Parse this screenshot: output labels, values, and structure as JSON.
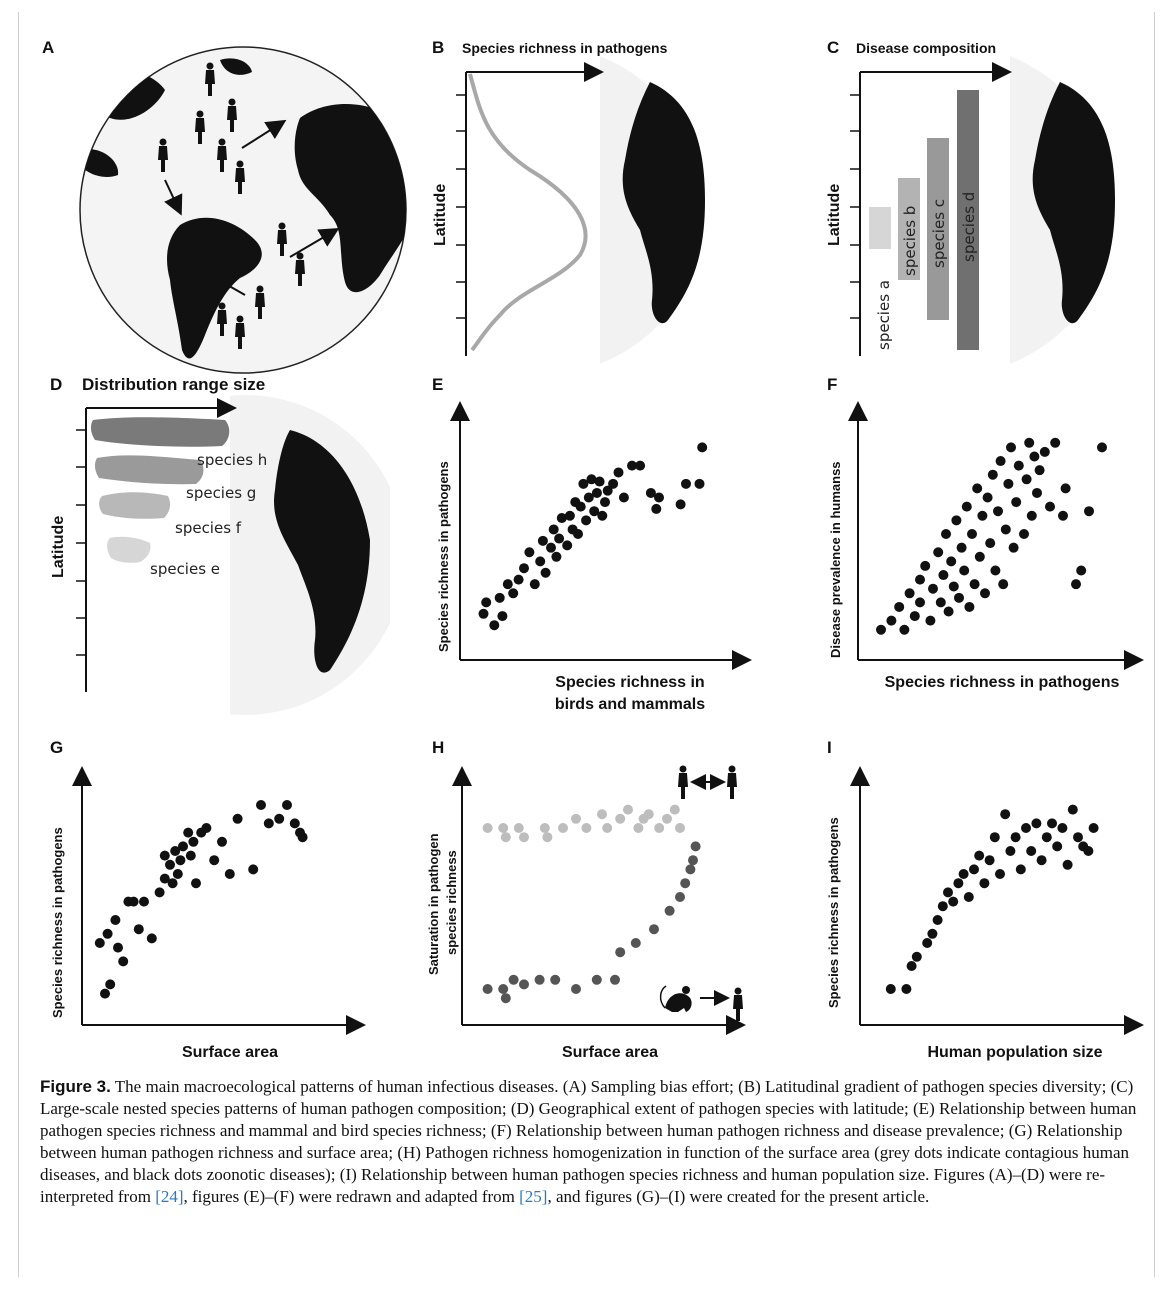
{
  "figure": {
    "panels": {
      "A": {
        "label": "A"
      },
      "B": {
        "label": "B",
        "title": "Species richness in pathogens",
        "ylabel": "Latitude"
      },
      "C": {
        "label": "C",
        "title": "Disease composition",
        "ylabel": "Latitude",
        "species": [
          "species a",
          "species b",
          "species c",
          "species d"
        ]
      },
      "D": {
        "label": "D",
        "title": "Distribution range size",
        "ylabel": "Latitude",
        "species": [
          "species h",
          "species g",
          "species f",
          "species e"
        ]
      },
      "E": {
        "label": "E",
        "ylabel": "Species richness in pathogens",
        "xlabel_line1": "Species richness in",
        "xlabel_line2": "birds and mammals"
      },
      "F": {
        "label": "F",
        "ylabel": "Disease prevalence in humanss",
        "xlabel": "Species richness in pathogens"
      },
      "G": {
        "label": "G",
        "ylabel": "Species richness in pathogens",
        "xlabel": "Surface area"
      },
      "H": {
        "label": "H",
        "ylabel_line1": "Saturation in pathogen",
        "ylabel_line2": "species richness",
        "xlabel": "Surface area"
      },
      "I": {
        "label": "I",
        "ylabel": "Species richness in pathogens",
        "xlabel": "Human population size"
      }
    },
    "colors": {
      "dots": "#111111",
      "grey_dots": "#bdbdbd",
      "dark_grey_dots": "#555555",
      "gradient_curve": "#a8a8a8",
      "bar_a": "#d6d6d6",
      "bar_b": "#b3b3b3",
      "bar_c": "#999999",
      "bar_d": "#707070",
      "link": "#2b7bb9"
    }
  },
  "chart_data": [
    {
      "panel": "B",
      "type": "line",
      "title": "Species richness in pathogens",
      "ylabel": "Latitude",
      "x": [
        0.05,
        0.1,
        0.3,
        0.55,
        0.8,
        0.95,
        0.8,
        0.55,
        0.3,
        0.1,
        0.0
      ],
      "y": [
        1.0,
        0.9,
        0.8,
        0.7,
        0.6,
        0.5,
        0.4,
        0.3,
        0.2,
        0.1,
        0.0
      ]
    },
    {
      "panel": "C",
      "type": "bar",
      "title": "Disease composition",
      "ylabel": "Latitude",
      "categories": [
        "species a",
        "species b",
        "species c",
        "species d"
      ],
      "ranges": [
        [
          0.38,
          0.55
        ],
        [
          0.27,
          0.64
        ],
        [
          0.1,
          0.74
        ],
        [
          0.0,
          0.93
        ]
      ]
    },
    {
      "panel": "D",
      "type": "bar",
      "title": "Distribution range size",
      "ylabel": "Latitude",
      "categories": [
        "species h",
        "species g",
        "species f",
        "species e"
      ],
      "widths": [
        1.0,
        0.8,
        0.55,
        0.38
      ]
    },
    {
      "panel": "E",
      "type": "scatter",
      "xlabel": "Species richness in birds and mammals",
      "ylabel": "Species richness in pathogens",
      "x": [
        0.05,
        0.06,
        0.09,
        0.11,
        0.12,
        0.14,
        0.16,
        0.18,
        0.2,
        0.22,
        0.24,
        0.26,
        0.27,
        0.28,
        0.3,
        0.31,
        0.32,
        0.33,
        0.34,
        0.36,
        0.37,
        0.38,
        0.39,
        0.4,
        0.41,
        0.42,
        0.43,
        0.44,
        0.45,
        0.46,
        0.47,
        0.48,
        0.49,
        0.5,
        0.51,
        0.53,
        0.55,
        0.57,
        0.6,
        0.63,
        0.67,
        0.69,
        0.7,
        0.78,
        0.8,
        0.85,
        0.86
      ],
      "y": [
        0.15,
        0.2,
        0.1,
        0.22,
        0.14,
        0.28,
        0.24,
        0.3,
        0.35,
        0.42,
        0.28,
        0.38,
        0.47,
        0.33,
        0.44,
        0.52,
        0.4,
        0.48,
        0.57,
        0.45,
        0.58,
        0.52,
        0.64,
        0.5,
        0.62,
        0.72,
        0.56,
        0.66,
        0.74,
        0.6,
        0.68,
        0.73,
        0.58,
        0.64,
        0.69,
        0.72,
        0.77,
        0.66,
        0.8,
        0.8,
        0.68,
        0.61,
        0.66,
        0.63,
        0.72,
        0.72,
        0.88
      ]
    },
    {
      "panel": "F",
      "type": "scatter",
      "xlabel": "Species richness in pathogens",
      "ylabel": "Disease prevalence in humanss",
      "x": [
        0.05,
        0.09,
        0.12,
        0.14,
        0.16,
        0.18,
        0.2,
        0.2,
        0.22,
        0.24,
        0.25,
        0.27,
        0.28,
        0.29,
        0.3,
        0.31,
        0.32,
        0.33,
        0.34,
        0.35,
        0.36,
        0.37,
        0.38,
        0.39,
        0.4,
        0.41,
        0.42,
        0.43,
        0.44,
        0.45,
        0.46,
        0.47,
        0.48,
        0.49,
        0.5,
        0.51,
        0.52,
        0.53,
        0.54,
        0.55,
        0.56,
        0.57,
        0.58,
        0.6,
        0.61,
        0.62,
        0.63,
        0.64,
        0.65,
        0.66,
        0.68,
        0.7,
        0.72,
        0.75,
        0.76,
        0.8,
        0.82,
        0.85,
        0.9
      ],
      "y": [
        0.08,
        0.12,
        0.18,
        0.08,
        0.24,
        0.14,
        0.3,
        0.2,
        0.36,
        0.12,
        0.26,
        0.42,
        0.2,
        0.32,
        0.5,
        0.16,
        0.38,
        0.27,
        0.56,
        0.22,
        0.44,
        0.34,
        0.62,
        0.18,
        0.5,
        0.28,
        0.7,
        0.4,
        0.58,
        0.24,
        0.66,
        0.46,
        0.76,
        0.34,
        0.6,
        0.82,
        0.28,
        0.52,
        0.72,
        0.88,
        0.44,
        0.64,
        0.8,
        0.5,
        0.74,
        0.9,
        0.58,
        0.84,
        0.68,
        0.78,
        0.86,
        0.62,
        0.9,
        0.58,
        0.7,
        0.28,
        0.34,
        0.6,
        0.88
      ]
    },
    {
      "panel": "G",
      "type": "scatter",
      "xlabel": "Surface area",
      "ylabel": "Species richness in pathogens",
      "x": [
        0.03,
        0.05,
        0.06,
        0.07,
        0.09,
        0.1,
        0.12,
        0.14,
        0.16,
        0.18,
        0.2,
        0.23,
        0.26,
        0.28,
        0.28,
        0.3,
        0.31,
        0.32,
        0.33,
        0.34,
        0.35,
        0.37,
        0.38,
        0.39,
        0.4,
        0.42,
        0.44,
        0.47,
        0.5,
        0.53,
        0.56,
        0.62,
        0.65,
        0.68,
        0.72,
        0.75,
        0.78,
        0.8,
        0.81
      ],
      "y": [
        0.3,
        0.08,
        0.34,
        0.12,
        0.4,
        0.28,
        0.22,
        0.48,
        0.48,
        0.36,
        0.48,
        0.32,
        0.52,
        0.58,
        0.68,
        0.64,
        0.56,
        0.7,
        0.6,
        0.66,
        0.72,
        0.78,
        0.68,
        0.74,
        0.56,
        0.78,
        0.8,
        0.66,
        0.74,
        0.6,
        0.84,
        0.62,
        0.9,
        0.82,
        0.84,
        0.9,
        0.82,
        0.78,
        0.76
      ]
    },
    {
      "panel": "H",
      "type": "scatter",
      "xlabel": "Surface area",
      "ylabel": "Saturation in pathogen species richness",
      "series": [
        {
          "name": "grey dots indicate contagious human diseases",
          "x": [
            0.06,
            0.12,
            0.13,
            0.18,
            0.2,
            0.28,
            0.29,
            0.35,
            0.4,
            0.44,
            0.5,
            0.52,
            0.57,
            0.6,
            0.64,
            0.66,
            0.68,
            0.72,
            0.75,
            0.78,
            0.8
          ],
          "y": [
            0.8,
            0.8,
            0.76,
            0.8,
            0.76,
            0.8,
            0.76,
            0.8,
            0.84,
            0.8,
            0.86,
            0.8,
            0.84,
            0.88,
            0.8,
            0.84,
            0.86,
            0.8,
            0.84,
            0.88,
            0.8
          ]
        },
        {
          "name": "black dots zoonotic diseases",
          "x": [
            0.06,
            0.12,
            0.13,
            0.16,
            0.2,
            0.26,
            0.32,
            0.4,
            0.48,
            0.55,
            0.57,
            0.63,
            0.7,
            0.76,
            0.8,
            0.82,
            0.84,
            0.85,
            0.86
          ],
          "y": [
            0.1,
            0.1,
            0.06,
            0.14,
            0.12,
            0.14,
            0.14,
            0.1,
            0.14,
            0.14,
            0.26,
            0.3,
            0.36,
            0.44,
            0.5,
            0.56,
            0.62,
            0.66,
            0.72
          ]
        }
      ]
    },
    {
      "panel": "I",
      "type": "scatter",
      "xlabel": "Human population size",
      "ylabel": "Species richness in pathogens",
      "x": [
        0.08,
        0.14,
        0.16,
        0.18,
        0.22,
        0.24,
        0.26,
        0.28,
        0.3,
        0.32,
        0.34,
        0.36,
        0.38,
        0.4,
        0.42,
        0.44,
        0.46,
        0.48,
        0.5,
        0.52,
        0.54,
        0.56,
        0.58,
        0.6,
        0.62,
        0.64,
        0.66,
        0.68,
        0.7,
        0.72,
        0.74,
        0.76,
        0.78,
        0.8,
        0.82,
        0.84,
        0.86
      ],
      "y": [
        0.1,
        0.1,
        0.2,
        0.24,
        0.3,
        0.34,
        0.4,
        0.46,
        0.52,
        0.48,
        0.56,
        0.6,
        0.5,
        0.62,
        0.68,
        0.56,
        0.66,
        0.76,
        0.6,
        0.86,
        0.7,
        0.76,
        0.62,
        0.8,
        0.7,
        0.82,
        0.66,
        0.76,
        0.82,
        0.72,
        0.8,
        0.64,
        0.88,
        0.76,
        0.72,
        0.7,
        0.8
      ]
    }
  ],
  "caption": {
    "fig_label": "Figure 3.",
    "text_1": " The main macroecological patterns of human infectious diseases. (A) Sampling bias effort; (B) Latitudinal gradient of pathogen species diversity; (C) Large-scale nested species patterns of human pathogen composition; (D) Geographical extent of pathogen species with latitude; (E) Relationship between human pathogen species richness and mammal and bird species richness; (F) Relationship between human pathogen richness and disease prevalence; (G) Relationship between human pathogen richness and surface area; (H) Pathogen richness homogenization in function of the surface area (grey dots indicate contagious human diseases, and black dots zoonotic diseases); (I) Relationship between human pathogen species richness and human population size. Figures (A)–(D) were re-interpreted from ",
    "ref_1": "[24]",
    "text_2": ", figures (E)–(F) were redrawn and adapted from ",
    "ref_2": "[25]",
    "text_3": ", and figures (G)–(I) were created for the present article."
  }
}
